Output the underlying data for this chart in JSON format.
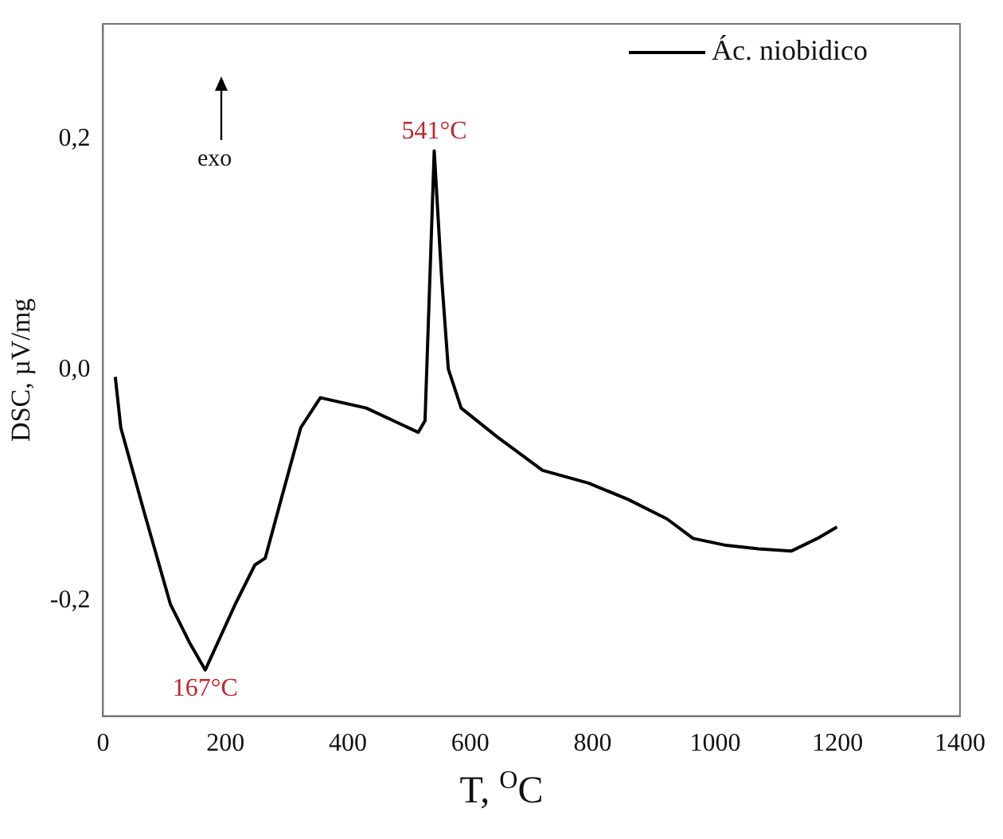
{
  "chart_data": {
    "type": "line",
    "xlabel": "T, $^{O}$C",
    "ylabel": "DSC, µV/mg",
    "xlim": [
      0,
      1400
    ],
    "xticks": [
      0,
      200,
      400,
      600,
      800,
      1000,
      1200,
      1400
    ],
    "ylim": [
      -0.3,
      0.3
    ],
    "yticks": [
      {
        "value": -0.2,
        "label": "-0,2"
      },
      {
        "value": 0,
        "label": "0,0"
      },
      {
        "value": 0.2,
        "label": "0,2"
      }
    ],
    "grid": false,
    "legend": "top right",
    "marker": "none",
    "line_style": "solid",
    "series": [
      {
        "name": "Ác. niobidico",
        "color": "#000000",
        "x": [
          20,
          29,
          67,
          110,
          142,
          167,
          216,
          248,
          265,
          291,
          323,
          355,
          430,
          515,
          526,
          541,
          553,
          564,
          585,
          644,
          718,
          793,
          857,
          921,
          964,
          1018,
          1071,
          1124,
          1167,
          1199
        ],
        "values": [
          -0.006,
          -0.05,
          -0.123,
          -0.203,
          -0.237,
          -0.26,
          -0.203,
          -0.169,
          -0.163,
          -0.112,
          -0.05,
          -0.024,
          -0.033,
          -0.054,
          -0.044,
          0.19,
          0.081,
          0.001,
          -0.033,
          -0.058,
          -0.087,
          -0.098,
          -0.112,
          -0.129,
          -0.146,
          -0.152,
          -0.155,
          -0.157,
          -0.146,
          -0.136
        ]
      }
    ],
    "annotations": [
      {
        "text": "541°C",
        "x": 541,
        "y": 0.19
      },
      {
        "text": "167°C",
        "x": 167,
        "y": -0.26
      },
      "exo"
    ]
  }
}
